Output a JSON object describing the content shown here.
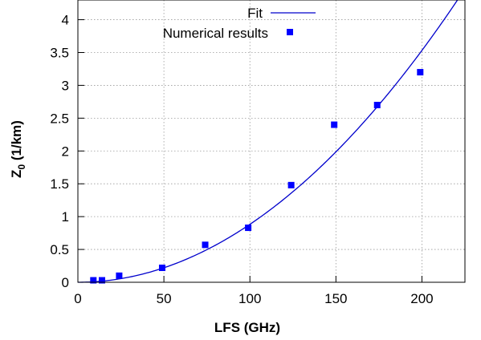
{
  "chart_data": {
    "type": "scatter",
    "xlabel": "LFS (GHz)",
    "ylabel": {
      "main": "Z",
      "sub": "0",
      "rest": " (1/km)"
    },
    "xlim": [
      0,
      225
    ],
    "ylim": [
      0,
      4.3
    ],
    "xticks": [
      "0",
      "50",
      "100",
      "150",
      "200"
    ],
    "yticks": [
      "0",
      "0.5",
      "1",
      "1.5",
      "2",
      "2.5",
      "3",
      "3.5",
      "4"
    ],
    "grid": true,
    "legend_position": "top-right",
    "colors": {
      "series": "#0000ff",
      "fit": "#0000cc",
      "grid": "#999999",
      "axis": "#000000"
    },
    "series": [
      {
        "name": "Fit",
        "kind": "line",
        "model": "quadratic",
        "coefficient": 8.83e-05,
        "x_range": [
          0,
          225
        ]
      },
      {
        "name": "Numerical results",
        "kind": "points",
        "marker": "square",
        "x": [
          9,
          14,
          24,
          49,
          74,
          99,
          124,
          149,
          174,
          199
        ],
        "y": [
          0.03,
          0.03,
          0.1,
          0.22,
          0.57,
          0.83,
          1.48,
          2.4,
          2.7,
          3.2
        ]
      }
    ]
  }
}
